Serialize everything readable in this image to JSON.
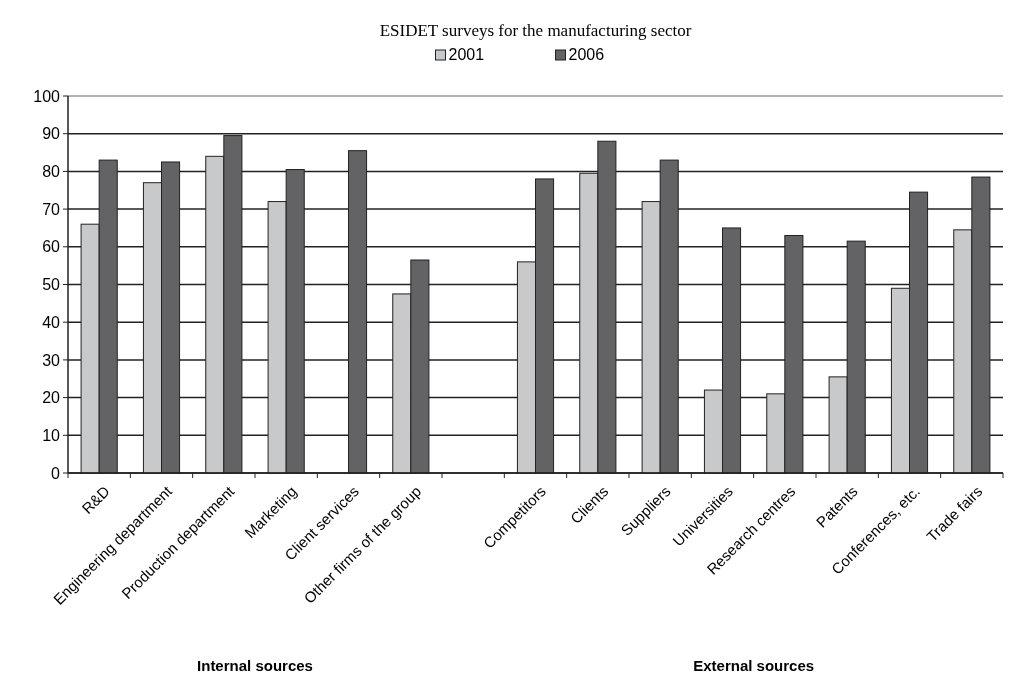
{
  "chart_data": {
    "type": "bar",
    "title": "ESIDET surveys for the manufacturing sector",
    "categories": [
      "R&D",
      "Engineering department",
      "Production department",
      "Marketing",
      "Client services",
      "Other firms of the group",
      null,
      "Competitors",
      "Clients",
      "Suppliers",
      "Universities",
      "Research centres",
      "Patents",
      "Conferences, etc.",
      "Trade fairs"
    ],
    "series": [
      {
        "name": "2001",
        "color": "#c8c9cb",
        "values": [
          66,
          77,
          84,
          72,
          null,
          47.5,
          null,
          56,
          79.5,
          72,
          22,
          21,
          25.5,
          49,
          64.5
        ]
      },
      {
        "name": "2006",
        "color": "#636265",
        "values": [
          83,
          82.5,
          89.5,
          80.5,
          85.5,
          56.5,
          null,
          78,
          88,
          83,
          65,
          63,
          61.5,
          74.5,
          78.5
        ]
      }
    ],
    "ylim": [
      0,
      100
    ],
    "yticks": [
      0,
      10,
      20,
      30,
      40,
      50,
      60,
      70,
      80,
      90,
      100
    ],
    "grid": "y",
    "legend": "top",
    "annotations": [
      "Internal sources",
      "External sources"
    ]
  }
}
